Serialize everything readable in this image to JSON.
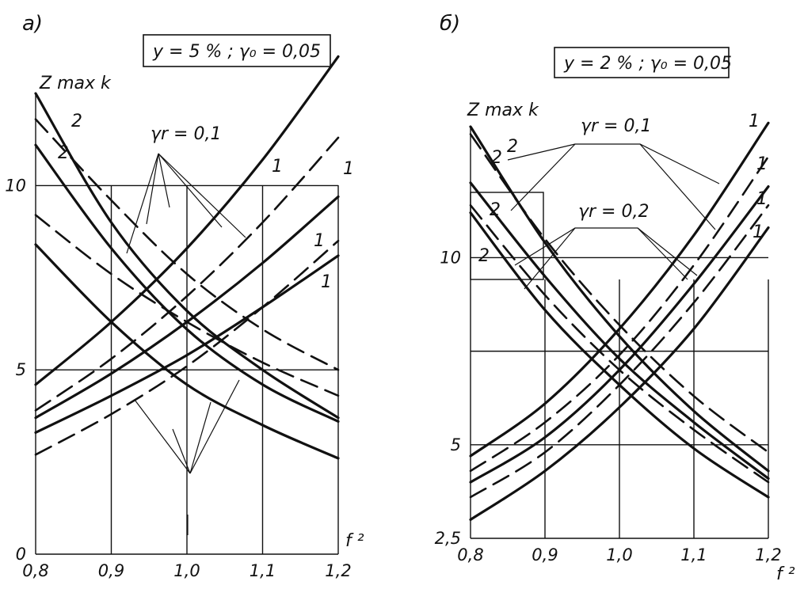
{
  "chart_data": [
    {
      "type": "line",
      "panel_label": "а)",
      "params_box": "y = 5 % ; γ₀ = 0,05",
      "ylabel": "Z max k",
      "xlabel": "f ²",
      "xlim": [
        0.8,
        1.2
      ],
      "ylim": [
        0,
        12.5
      ],
      "x_ticks": [
        "0,8",
        "0,9",
        "1,0",
        "1,1",
        "1,2"
      ],
      "y_ticks": [
        "0",
        "5",
        "10"
      ],
      "y_tick_values": [
        0,
        5,
        10
      ],
      "grid_x": [
        0.9,
        1.0,
        1.1,
        1.2
      ],
      "grid_y": [
        5,
        10
      ],
      "annotations": [
        {
          "text": "γr = 0,1"
        },
        {
          "text": "1"
        },
        {
          "text": "1"
        },
        {
          "text": "1"
        },
        {
          "text": "1"
        },
        {
          "text": "2"
        },
        {
          "text": "2"
        }
      ],
      "series": [
        {
          "label": "2",
          "style": "solid",
          "x": [
            0.8,
            0.9,
            1.0,
            1.1,
            1.2
          ],
          "y": [
            12.5,
            9.0,
            6.6,
            5.0,
            3.7
          ]
        },
        {
          "label": "2",
          "style": "dashed",
          "x": [
            0.8,
            0.9,
            1.0,
            1.1,
            1.2
          ],
          "y": [
            11.8,
            9.6,
            7.6,
            6.1,
            5.0
          ]
        },
        {
          "label": "2",
          "style": "solid",
          "x": [
            0.8,
            0.9,
            1.0,
            1.1,
            1.2
          ],
          "y": [
            11.1,
            8.3,
            6.1,
            4.6,
            3.6
          ]
        },
        {
          "label": "",
          "style": "dashed",
          "x": [
            0.8,
            0.9,
            1.0,
            1.1,
            1.2
          ],
          "y": [
            9.2,
            7.6,
            6.3,
            5.2,
            4.3
          ]
        },
        {
          "label": "",
          "style": "solid",
          "x": [
            0.8,
            0.9,
            1.0,
            1.1,
            1.2
          ],
          "y": [
            8.4,
            6.3,
            4.6,
            3.5,
            2.6
          ]
        },
        {
          "label": "1",
          "style": "solid",
          "x": [
            0.8,
            0.9,
            1.0,
            1.1,
            1.2
          ],
          "y": [
            4.6,
            6.3,
            8.3,
            10.7,
            13.5
          ]
        },
        {
          "label": "1",
          "style": "dashed",
          "x": [
            0.8,
            0.9,
            1.0,
            1.1,
            1.2
          ],
          "y": [
            3.9,
            5.3,
            7.0,
            9.0,
            11.3
          ]
        },
        {
          "label": "1",
          "style": "solid",
          "x": [
            0.8,
            0.9,
            1.0,
            1.1,
            1.2
          ],
          "y": [
            3.7,
            4.9,
            6.3,
            7.9,
            9.7
          ]
        },
        {
          "label": "1",
          "style": "dashed",
          "x": [
            0.8,
            0.9,
            1.0,
            1.1,
            1.2
          ],
          "y": [
            2.7,
            3.8,
            5.1,
            6.7,
            8.5
          ]
        },
        {
          "label": "",
          "style": "solid",
          "x": [
            0.8,
            0.9,
            1.0,
            1.1,
            1.2
          ],
          "y": [
            3.3,
            4.3,
            5.4,
            6.7,
            8.1
          ]
        }
      ]
    },
    {
      "type": "line",
      "panel_label": "б)",
      "params_box": "y = 2 % ; γ₀ = 0,05",
      "ylabel": "Z max k",
      "xlabel": "f ²",
      "xlim": [
        0.8,
        1.2
      ],
      "ylim": [
        2.5,
        13.5
      ],
      "x_ticks": [
        "0,8",
        "0,9",
        "1,0",
        "1,1",
        "1,2"
      ],
      "y_ticks": [
        "2,5",
        "5",
        "10"
      ],
      "y_tick_values": [
        2.5,
        5,
        10
      ],
      "grid_x": [
        0.9,
        1.0,
        1.1,
        1.2
      ],
      "grid_y": [
        5,
        7.5,
        10
      ],
      "annotations": [
        {
          "text": "γr = 0,1"
        },
        {
          "text": "γr = 0,2"
        },
        {
          "text": "1"
        },
        {
          "text": "1"
        },
        {
          "text": "1"
        },
        {
          "text": "1"
        },
        {
          "text": "2"
        },
        {
          "text": "2"
        },
        {
          "text": "2"
        },
        {
          "text": "2"
        }
      ],
      "series": [
        {
          "label": "2",
          "style": "solid",
          "x": [
            0.8,
            0.9,
            1.0,
            1.1,
            1.2
          ],
          "y": [
            13.5,
            10.4,
            7.9,
            5.9,
            4.3
          ]
        },
        {
          "label": "2",
          "style": "dashed",
          "x": [
            0.8,
            0.9,
            1.0,
            1.1,
            1.2
          ],
          "y": [
            13.3,
            10.5,
            8.2,
            6.3,
            4.8
          ]
        },
        {
          "label": "2",
          "style": "solid",
          "x": [
            0.8,
            0.9,
            1.0,
            1.1,
            1.2
          ],
          "y": [
            12.0,
            9.5,
            7.3,
            5.6,
            4.1
          ]
        },
        {
          "label": "2",
          "style": "dashed",
          "x": [
            0.8,
            0.9,
            1.0,
            1.1,
            1.2
          ],
          "y": [
            11.4,
            9.0,
            7.0,
            5.4,
            4.0
          ]
        },
        {
          "label": "",
          "style": "solid",
          "x": [
            0.8,
            0.9,
            1.0,
            1.1,
            1.2
          ],
          "y": [
            11.2,
            8.6,
            6.6,
            4.9,
            3.6
          ]
        },
        {
          "label": "1",
          "style": "solid",
          "x": [
            0.8,
            0.9,
            1.0,
            1.1,
            1.2
          ],
          "y": [
            4.7,
            6.1,
            8.1,
            10.6,
            13.6
          ]
        },
        {
          "label": "1",
          "style": "dashed",
          "x": [
            0.8,
            0.9,
            1.0,
            1.1,
            1.2
          ],
          "y": [
            4.3,
            5.6,
            7.4,
            9.8,
            12.7
          ]
        },
        {
          "label": "1",
          "style": "solid",
          "x": [
            0.8,
            0.9,
            1.0,
            1.1,
            1.2
          ],
          "y": [
            4.0,
            5.2,
            7.0,
            9.3,
            11.9
          ]
        },
        {
          "label": "1",
          "style": "dashed",
          "x": [
            0.8,
            0.9,
            1.0,
            1.1,
            1.2
          ],
          "y": [
            3.6,
            4.8,
            6.6,
            8.8,
            11.4
          ]
        },
        {
          "label": "",
          "style": "solid",
          "x": [
            0.8,
            0.9,
            1.0,
            1.1,
            1.2
          ],
          "y": [
            3.0,
            4.3,
            6.0,
            8.1,
            10.8
          ]
        }
      ]
    }
  ]
}
